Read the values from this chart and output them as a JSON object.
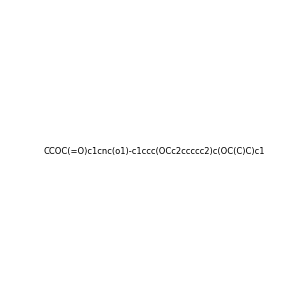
{
  "smiles": "CCOC(=O)c1cnc(o1)-c1ccc(OCc2ccccc2)c(OC(C)C)c1",
  "title": "",
  "background_color": "#f0f0f0",
  "bond_color": "#000000",
  "n_color": "#0000ff",
  "o_color": "#ff0000",
  "figsize": [
    3.0,
    3.0
  ],
  "dpi": 100
}
